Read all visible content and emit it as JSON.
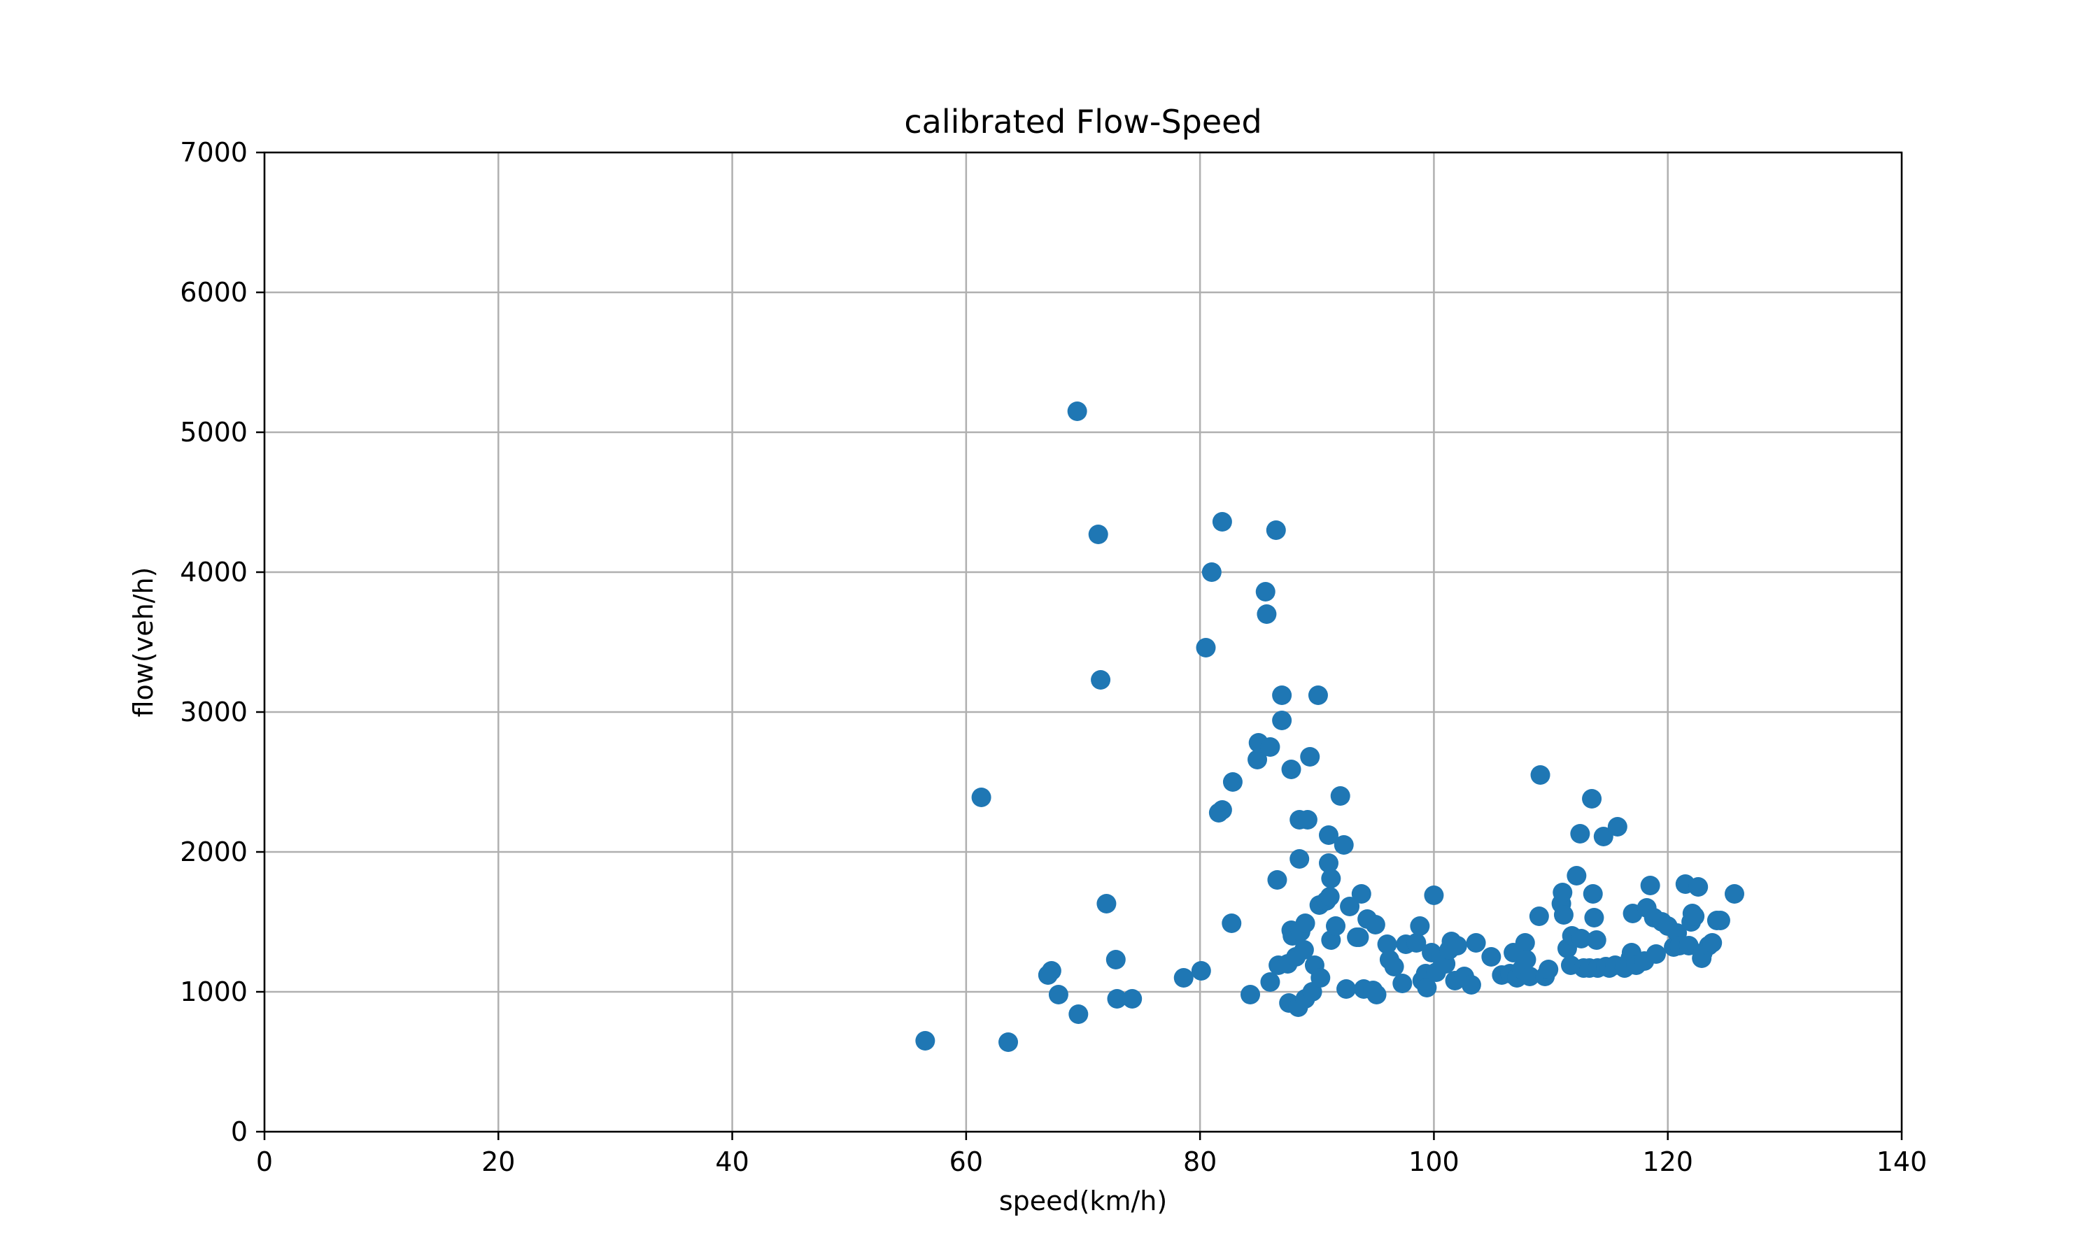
{
  "chart_data": {
    "type": "scatter",
    "title": "calibrated Flow-Speed",
    "xlabel": "speed(km/h)",
    "ylabel": "flow(veh/h)",
    "xlim": [
      0,
      140
    ],
    "ylim": [
      0,
      7000
    ],
    "xticks": [
      "0",
      "20",
      "40",
      "60",
      "80",
      "100",
      "120",
      "140"
    ],
    "yticks": [
      "0",
      "1000",
      "2000",
      "3000",
      "4000",
      "5000",
      "6000",
      "7000"
    ],
    "grid": true,
    "marker_color": "#1f77b4",
    "series": [
      {
        "points": [
          [
            69.5,
            5150
          ],
          [
            71.3,
            4270
          ],
          [
            71.5,
            3230
          ],
          [
            61.3,
            2390
          ],
          [
            72.0,
            1630
          ],
          [
            56.5,
            650
          ],
          [
            63.6,
            640
          ],
          [
            69.6,
            840
          ],
          [
            67.0,
            1120
          ],
          [
            67.3,
            1150
          ],
          [
            67.9,
            980
          ],
          [
            72.8,
            1230
          ],
          [
            72.9,
            950
          ],
          [
            74.2,
            950
          ],
          [
            78.6,
            1100
          ],
          [
            80.1,
            1150
          ],
          [
            80.5,
            3460
          ],
          [
            81.0,
            4000
          ],
          [
            81.9,
            4360
          ],
          [
            81.6,
            2280
          ],
          [
            81.9,
            2300
          ],
          [
            82.7,
            1490
          ],
          [
            82.8,
            2500
          ],
          [
            84.3,
            980
          ],
          [
            84.9,
            2660
          ],
          [
            85.0,
            2780
          ],
          [
            85.6,
            3860
          ],
          [
            85.7,
            3700
          ],
          [
            86.0,
            2750
          ],
          [
            86.0,
            1070
          ],
          [
            86.5,
            4300
          ],
          [
            86.6,
            1800
          ],
          [
            86.7,
            1190
          ],
          [
            87.0,
            3120
          ],
          [
            87.0,
            2940
          ],
          [
            87.5,
            1200
          ],
          [
            87.6,
            920
          ],
          [
            87.8,
            2590
          ],
          [
            87.8,
            1440
          ],
          [
            87.9,
            1400
          ],
          [
            88.2,
            1250
          ],
          [
            88.4,
            890
          ],
          [
            88.5,
            1950
          ],
          [
            88.5,
            2230
          ],
          [
            88.6,
            1430
          ],
          [
            88.9,
            1300
          ],
          [
            89.0,
            950
          ],
          [
            89.0,
            1490
          ],
          [
            89.2,
            2230
          ],
          [
            89.4,
            2680
          ],
          [
            89.6,
            1000
          ],
          [
            89.8,
            1190
          ],
          [
            90.1,
            3120
          ],
          [
            90.2,
            1620
          ],
          [
            90.3,
            1100
          ],
          [
            90.8,
            1650
          ],
          [
            91.0,
            2120
          ],
          [
            91.0,
            1920
          ],
          [
            91.1,
            1680
          ],
          [
            91.2,
            1810
          ],
          [
            91.2,
            1370
          ],
          [
            91.6,
            1470
          ],
          [
            92.0,
            2400
          ],
          [
            92.3,
            2050
          ],
          [
            92.5,
            1020
          ],
          [
            92.8,
            1610
          ],
          [
            93.4,
            1390
          ],
          [
            93.6,
            1390
          ],
          [
            93.8,
            1700
          ],
          [
            94.0,
            1020
          ],
          [
            94.3,
            1520
          ],
          [
            94.8,
            1010
          ],
          [
            95.0,
            1480
          ],
          [
            95.1,
            980
          ],
          [
            96.0,
            1340
          ],
          [
            96.2,
            1230
          ],
          [
            96.6,
            1180
          ],
          [
            97.3,
            1060
          ],
          [
            97.6,
            1340
          ],
          [
            98.5,
            1350
          ],
          [
            98.8,
            1470
          ],
          [
            99.0,
            1080
          ],
          [
            99.3,
            1130
          ],
          [
            99.4,
            1030
          ],
          [
            99.8,
            1280
          ],
          [
            100.0,
            1690
          ],
          [
            100.2,
            1140
          ],
          [
            100.6,
            1250
          ],
          [
            101.0,
            1200
          ],
          [
            101.3,
            1300
          ],
          [
            101.5,
            1360
          ],
          [
            101.8,
            1080
          ],
          [
            102.0,
            1330
          ],
          [
            102.6,
            1110
          ],
          [
            103.2,
            1050
          ],
          [
            103.6,
            1350
          ],
          [
            104.9,
            1250
          ],
          [
            105.8,
            1120
          ],
          [
            106.5,
            1130
          ],
          [
            106.8,
            1280
          ],
          [
            107.1,
            1100
          ],
          [
            107.5,
            1160
          ],
          [
            107.8,
            1350
          ],
          [
            107.9,
            1230
          ],
          [
            108.2,
            1110
          ],
          [
            109.0,
            1540
          ],
          [
            109.1,
            2550
          ],
          [
            109.5,
            1110
          ],
          [
            109.8,
            1160
          ],
          [
            110.9,
            1630
          ],
          [
            111.0,
            1710
          ],
          [
            111.1,
            1550
          ],
          [
            111.4,
            1310
          ],
          [
            111.7,
            1190
          ],
          [
            111.8,
            1400
          ],
          [
            112.2,
            1830
          ],
          [
            112.5,
            2130
          ],
          [
            112.6,
            1380
          ],
          [
            112.8,
            1170
          ],
          [
            113.3,
            1170
          ],
          [
            113.5,
            2380
          ],
          [
            113.6,
            1700
          ],
          [
            113.7,
            1530
          ],
          [
            113.9,
            1370
          ],
          [
            114.0,
            1170
          ],
          [
            114.5,
            2110
          ],
          [
            114.7,
            1180
          ],
          [
            115.0,
            1170
          ],
          [
            115.5,
            1190
          ],
          [
            115.7,
            2180
          ],
          [
            116.3,
            1170
          ],
          [
            116.8,
            1240
          ],
          [
            116.9,
            1280
          ],
          [
            117.0,
            1560
          ],
          [
            117.3,
            1190
          ],
          [
            118.0,
            1220
          ],
          [
            118.2,
            1600
          ],
          [
            118.5,
            1760
          ],
          [
            118.8,
            1530
          ],
          [
            119.0,
            1270
          ],
          [
            119.5,
            1500
          ],
          [
            120.0,
            1470
          ],
          [
            120.5,
            1320
          ],
          [
            120.8,
            1420
          ],
          [
            121.0,
            1330
          ],
          [
            121.5,
            1770
          ],
          [
            121.8,
            1330
          ],
          [
            122.0,
            1500
          ],
          [
            122.1,
            1560
          ],
          [
            122.3,
            1540
          ],
          [
            122.6,
            1750
          ],
          [
            122.9,
            1240
          ],
          [
            123.0,
            1280
          ],
          [
            123.5,
            1330
          ],
          [
            123.8,
            1350
          ],
          [
            124.2,
            1510
          ],
          [
            124.5,
            1510
          ],
          [
            125.7,
            1700
          ]
        ]
      }
    ]
  }
}
